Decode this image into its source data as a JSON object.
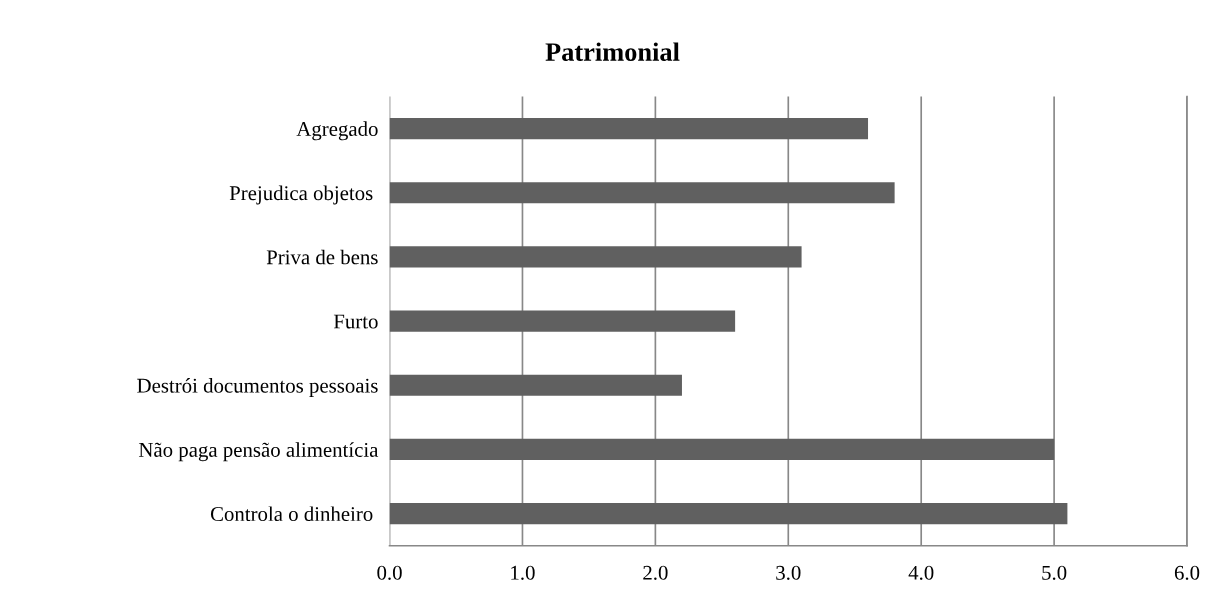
{
  "chart_data": {
    "type": "bar",
    "orientation": "horizontal",
    "title": "Patrimonial",
    "categories": [
      "Agregado",
      "Prejudica objetos ",
      "Priva de bens",
      "Furto",
      "Destrói documentos pessoais",
      "Não paga pensão alimentícia",
      "Controla o dinheiro "
    ],
    "values": [
      3.6,
      3.8,
      3.1,
      2.6,
      2.2,
      5.0,
      5.1
    ],
    "color": "#606060",
    "xlim": [
      0,
      6
    ],
    "xticks": [
      {
        "value": 0,
        "label": "0.0"
      },
      {
        "value": 1,
        "label": "1.0"
      },
      {
        "value": 2,
        "label": "2.0"
      },
      {
        "value": 3,
        "label": "3.0"
      },
      {
        "value": 4,
        "label": "4.0"
      },
      {
        "value": 5,
        "label": "5.0"
      },
      {
        "value": 6,
        "label": "6.0"
      }
    ],
    "grid": "x",
    "legend": false
  }
}
